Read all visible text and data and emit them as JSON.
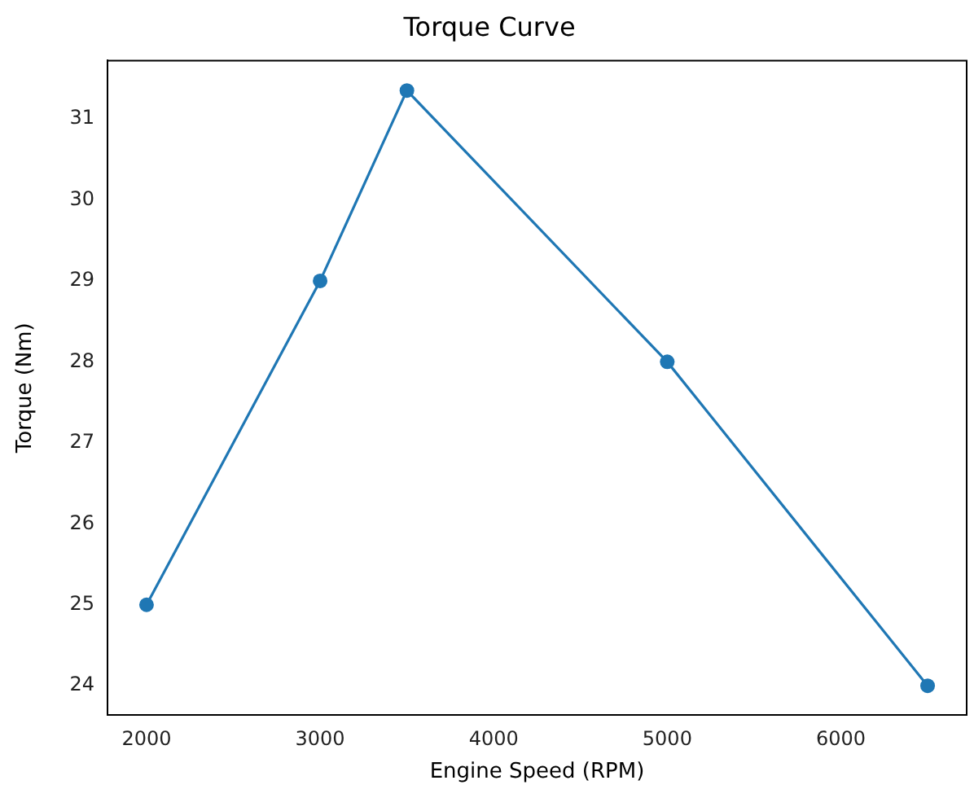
{
  "chart_data": {
    "type": "line",
    "title": "Torque Curve",
    "xlabel": "Engine Speed (RPM)",
    "ylabel": "Torque (Nm)",
    "x": [
      2000,
      3000,
      3500,
      5000,
      6500
    ],
    "series": [
      {
        "color": "#1f77b4",
        "values": [
          25,
          29,
          31.35,
          28,
          24
        ]
      }
    ],
    "xlim": [
      1775,
      6725
    ],
    "ylim": [
      23.64,
      31.72
    ],
    "xticks": [
      2000,
      3000,
      4000,
      5000,
      6000
    ],
    "yticks": [
      24,
      25,
      26,
      27,
      28,
      29,
      30,
      31
    ],
    "marker": "circle",
    "line_style": "solid",
    "grid": false,
    "legend": false
  }
}
